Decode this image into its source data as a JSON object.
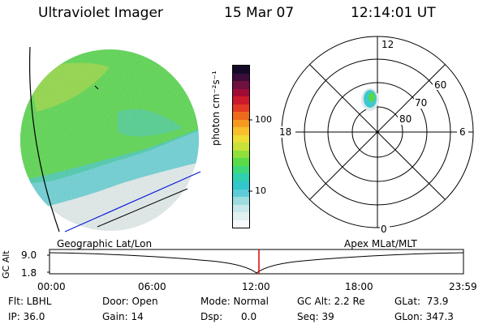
{
  "header": {
    "instrument": "Ultraviolet Imager",
    "date": "15 Mar 07",
    "time": "12:14:01 UT"
  },
  "colorbar": {
    "unit_label": "photon cm⁻²s⁻¹",
    "tick_labels": [
      "100",
      "10"
    ],
    "colors": [
      "#f6fafa",
      "#e2f0f0",
      "#c8e8ea",
      "#9cdcdf",
      "#5ccdd6",
      "#33c6cc",
      "#2fd0ad",
      "#3cd87a",
      "#5adc49",
      "#8fe03a",
      "#c8e23a",
      "#eedd33",
      "#f7c02b",
      "#f59a20",
      "#ee6a1c",
      "#e23a22",
      "#cc1a2a",
      "#a00c35",
      "#6e1040",
      "#3c0d3a",
      "#140a28"
    ]
  },
  "polar_plot": {
    "hour_labels": [
      "12",
      "18",
      "6",
      "0"
    ],
    "lat_labels": [
      "60",
      "70",
      "80"
    ]
  },
  "globe": {
    "fill_colors": {
      "green": "#55d84a",
      "cyan": "#3fc8ce",
      "light": "#e4eeee",
      "yellow_green": "#a8dc3c"
    },
    "line_colors": {
      "terminator": "#0b1ad8",
      "track": "#000000"
    }
  },
  "labels": {
    "geographic": "Geographic Lat/Lon",
    "apex": "Apex MLat/MLT"
  },
  "altitude_plot": {
    "ylabel": "GC Alt",
    "yticks": [
      "9.0",
      "1.8"
    ],
    "xticks": [
      "00:00",
      "06:00",
      "12:00",
      "18:00",
      "23:59"
    ],
    "marker_color": "#e00000"
  },
  "footer": {
    "flt": "Flt: LBHL",
    "door": "Door: Open",
    "mode": "Mode: Normal",
    "gc_alt": "GC Alt: 2.2 Re",
    "glat": "GLat:  73.9",
    "ip": "IP: 36.0",
    "gain": "Gain: 14",
    "dsp": "Dsp:      0.0",
    "seq": "Seq: 39",
    "glon": "GLon: 347.3"
  }
}
